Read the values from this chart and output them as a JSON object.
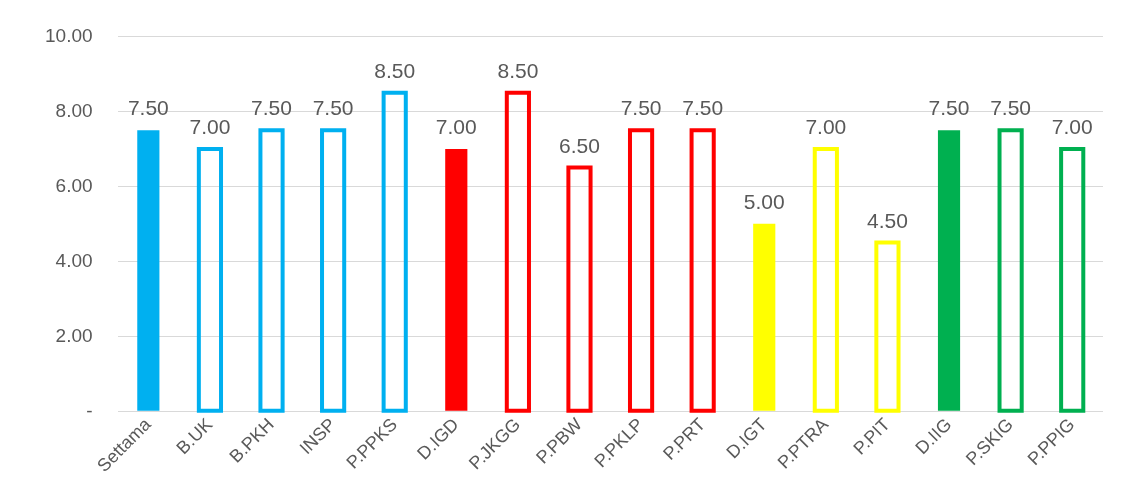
{
  "chart_data": {
    "type": "bar",
    "stacked": true,
    "categories": [
      "Settama",
      "B.UK",
      "B.PKH",
      "INSP",
      "P.PPKS",
      "D.IGD",
      "P.JKGG",
      "P.PBW",
      "P.PKLP",
      "P.PRT",
      "D.IGT",
      "P.PTRA",
      "P.PIT",
      "D.IIG",
      "P.SKIG",
      "P.PPIG"
    ],
    "series": [
      {
        "colors": [
          "#00b0f0",
          "#00b0f0",
          "#00b0f0",
          "#00b0f0",
          "#00b0f0",
          "#ff0000",
          "#ff0000",
          "#ff0000",
          "#ff0000",
          "#ff0000",
          "#ffff00",
          "#ffff00",
          "#ffff00",
          "#00b050",
          "#00b050",
          "#00b050"
        ],
        "values": [
          7.5,
          null,
          null,
          null,
          null,
          7,
          null,
          null,
          null,
          null,
          5,
          null,
          null,
          7.5,
          null,
          null
        ],
        "value_labels": [
          "7.50",
          null,
          null,
          null,
          null,
          "7.00",
          null,
          null,
          null,
          null,
          "5.00",
          null,
          null,
          "7.50",
          null,
          null
        ]
      },
      {
        "colors": [
          "#00b0f0",
          "#00b0f0",
          "#00b0f0",
          "#00b0f0",
          "#00b0f0",
          "#ff0000",
          "#ff0000",
          "#ff0000",
          "#ff0000",
          "#ff0000",
          "#ffff00",
          "#ffff00",
          "#ffff00",
          "#00b050",
          "#00b050",
          "#00b050"
        ],
        "values": [
          null,
          7,
          7.5,
          7.5,
          8.5,
          null,
          8.5,
          6.5,
          7.5,
          7.5,
          null,
          7,
          4.5,
          null,
          7.5,
          7
        ],
        "value_labels": [
          null,
          "7.00",
          "7.50",
          "7.50",
          "8.50",
          null,
          "8.50",
          "6.50",
          "7.50",
          "7.50",
          null,
          "7.00",
          "4.50",
          null,
          "7.50",
          "7.00"
        ]
      }
    ],
    "ylim": [
      0,
      10
    ],
    "yticks": [
      {
        "value": 0,
        "label": "-"
      },
      {
        "value": 2,
        "label": "2.00"
      },
      {
        "value": 4,
        "label": "4.00"
      },
      {
        "value": 6,
        "label": "6.00"
      },
      {
        "value": 8,
        "label": "8.00"
      },
      {
        "value": 10,
        "label": "10.00"
      }
    ],
    "grid": "y",
    "legend": false
  }
}
